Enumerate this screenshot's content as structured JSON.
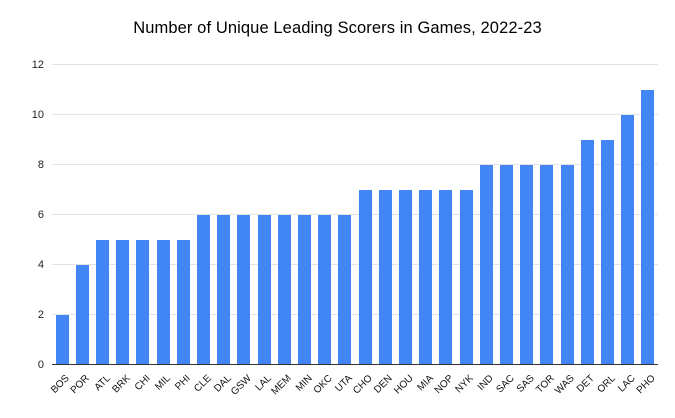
{
  "chart_data": {
    "type": "bar",
    "title": "Number of Unique Leading Scorers in Games, 2022-23",
    "categories": [
      "BOS",
      "POR",
      "ATL",
      "BRK",
      "CHI",
      "MIL",
      "PHI",
      "CLE",
      "DAL",
      "GSW",
      "LAL",
      "MEM",
      "MIN",
      "OKC",
      "UTA",
      "CHO",
      "DEN",
      "HOU",
      "MIA",
      "NOP",
      "NYK",
      "IND",
      "SAC",
      "SAS",
      "TOR",
      "WAS",
      "DET",
      "ORL",
      "LAC",
      "PHO"
    ],
    "values": [
      2,
      4,
      5,
      5,
      5,
      5,
      5,
      6,
      6,
      6,
      6,
      6,
      6,
      6,
      6,
      7,
      7,
      7,
      7,
      7,
      7,
      8,
      8,
      8,
      8,
      8,
      9,
      9,
      10,
      11
    ],
    "xlabel": "",
    "ylabel": "",
    "ylim": [
      0,
      12
    ],
    "yticks": [
      0,
      2,
      4,
      6,
      8,
      10,
      12
    ],
    "grid": true,
    "legend": "none",
    "colors": {
      "bar": "#4285f4",
      "gridline": "#e3e3e3",
      "axis_line": "#333333",
      "title_text": "#000000",
      "tick_text": "#222222",
      "background": "#ffffff"
    }
  }
}
